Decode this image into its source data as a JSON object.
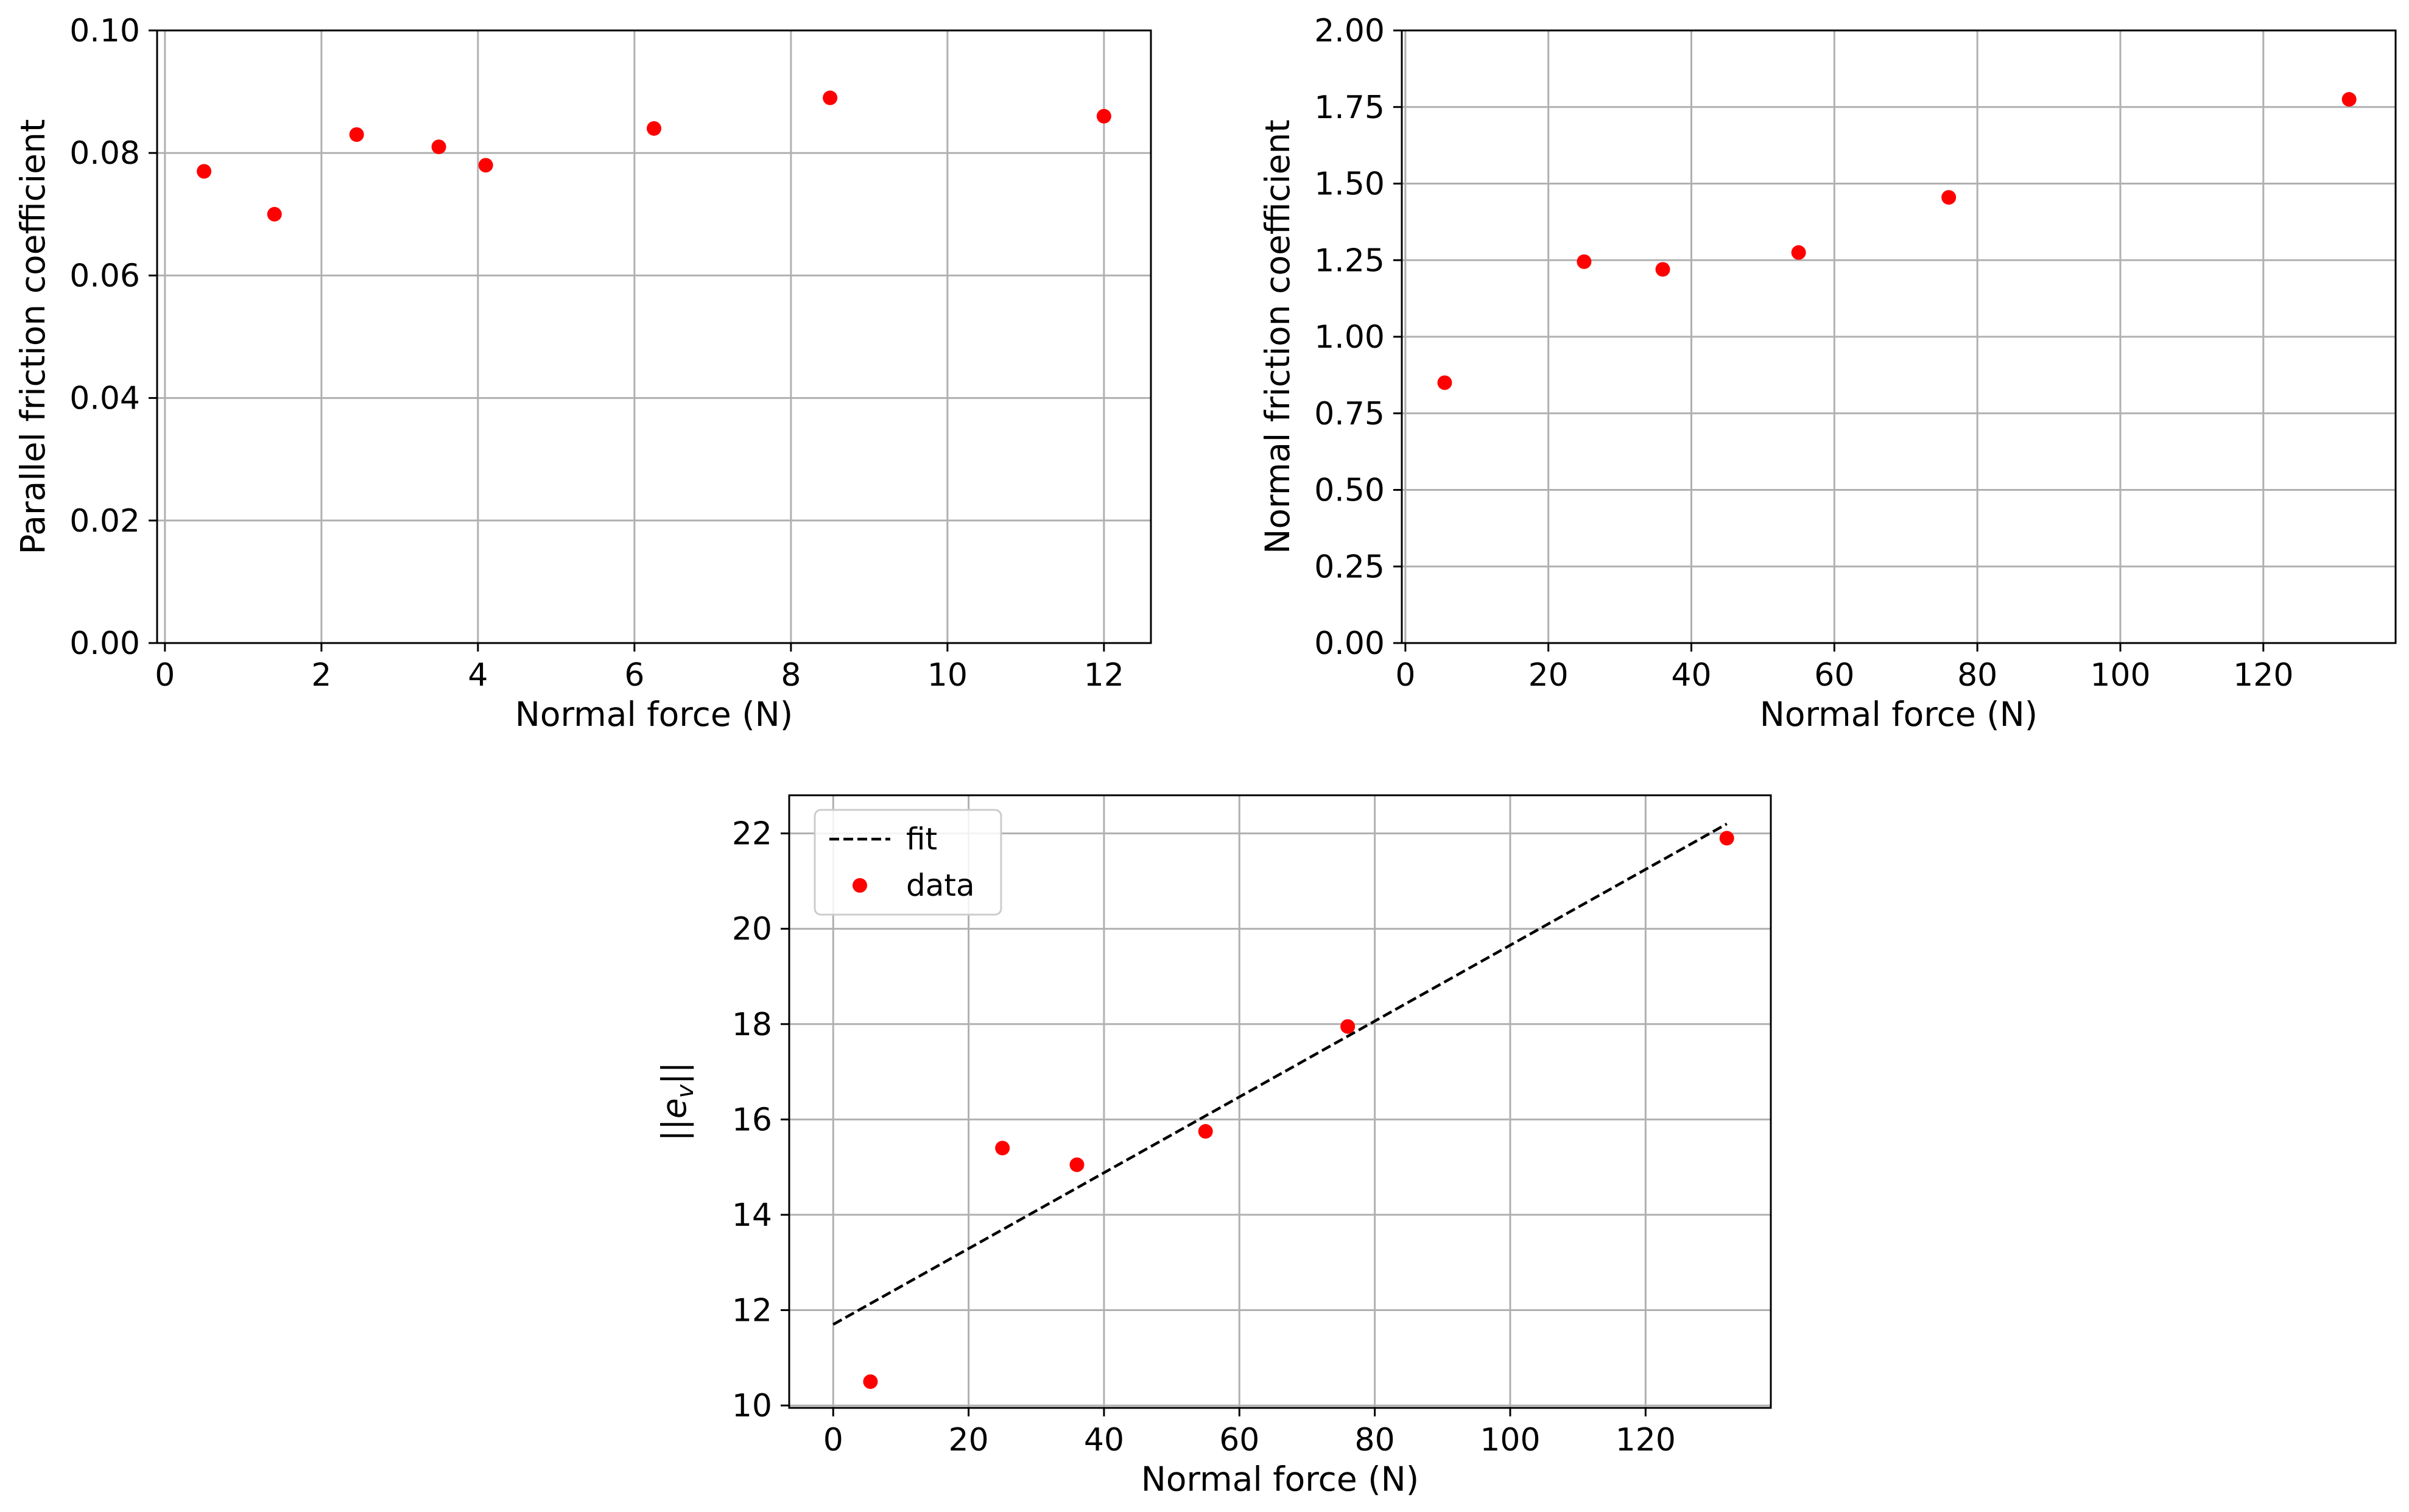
{
  "colors": {
    "data": "#ff0000",
    "fit": "#000000",
    "grid": "#b0b0b0",
    "axes": "#000000",
    "background": "#ffffff"
  },
  "chart_data": [
    {
      "type": "scatter",
      "title": "",
      "xlabel": "Normal force (N)",
      "ylabel": "Parallel friction coefficient",
      "xlim": [
        -0.1,
        12.6
      ],
      "ylim": [
        0.0,
        0.1
      ],
      "xticks": [
        0,
        2,
        4,
        6,
        8,
        10,
        12
      ],
      "xtick_labels": [
        "0",
        "2",
        "4",
        "6",
        "8",
        "10",
        "12"
      ],
      "yticks": [
        0.0,
        0.02,
        0.04,
        0.06,
        0.08,
        0.1
      ],
      "ytick_labels": [
        "0.00",
        "0.02",
        "0.04",
        "0.06",
        "0.08",
        "0.10"
      ],
      "grid": true,
      "series": [
        {
          "name": "data",
          "kind": "scatter",
          "x": [
            0.5,
            1.4,
            2.45,
            3.5,
            4.1,
            6.25,
            8.5,
            12.0
          ],
          "y": [
            0.077,
            0.07,
            0.083,
            0.081,
            0.078,
            0.084,
            0.089,
            0.086
          ]
        }
      ]
    },
    {
      "type": "scatter",
      "title": "",
      "xlabel": "Normal force (N)",
      "ylabel": "Normal friction coefficient",
      "xlim": [
        -0.5,
        138.5
      ],
      "ylim": [
        0.0,
        2.0
      ],
      "xticks": [
        0,
        20,
        40,
        60,
        80,
        100,
        120
      ],
      "xtick_labels": [
        "0",
        "20",
        "40",
        "60",
        "80",
        "100",
        "120"
      ],
      "yticks": [
        0.0,
        0.25,
        0.5,
        0.75,
        1.0,
        1.25,
        1.5,
        1.75,
        2.0
      ],
      "ytick_labels": [
        "0.00",
        "0.25",
        "0.50",
        "0.75",
        "1.00",
        "1.25",
        "1.50",
        "1.75",
        "2.00"
      ],
      "grid": true,
      "series": [
        {
          "name": "data",
          "kind": "scatter",
          "x": [
            5.5,
            25,
            36,
            55,
            76,
            132
          ],
          "y": [
            0.85,
            1.245,
            1.22,
            1.275,
            1.455,
            1.775
          ]
        }
      ]
    },
    {
      "type": "scatter",
      "title": "",
      "xlabel": "Normal force (N)",
      "ylabel": "||e_v||",
      "xlim": [
        -6.5,
        138.5
      ],
      "ylim": [
        9.95,
        22.8
      ],
      "xticks": [
        0,
        20,
        40,
        60,
        80,
        100,
        120
      ],
      "xtick_labels": [
        "0",
        "20",
        "40",
        "60",
        "80",
        "100",
        "120"
      ],
      "yticks": [
        10,
        12,
        14,
        16,
        18,
        20,
        22
      ],
      "ytick_labels": [
        "10",
        "12",
        "14",
        "16",
        "18",
        "20",
        "22"
      ],
      "grid": true,
      "legend": {
        "location": "upper-left",
        "entries": [
          "fit",
          "data"
        ]
      },
      "series": [
        {
          "name": "fit",
          "kind": "dashed-line",
          "x": [
            0,
            132
          ],
          "y": [
            11.7,
            22.2
          ]
        },
        {
          "name": "data",
          "kind": "scatter",
          "x": [
            5.5,
            25,
            36,
            55,
            76,
            132
          ],
          "y": [
            10.5,
            15.4,
            15.05,
            15.75,
            17.95,
            21.9
          ]
        }
      ]
    }
  ]
}
